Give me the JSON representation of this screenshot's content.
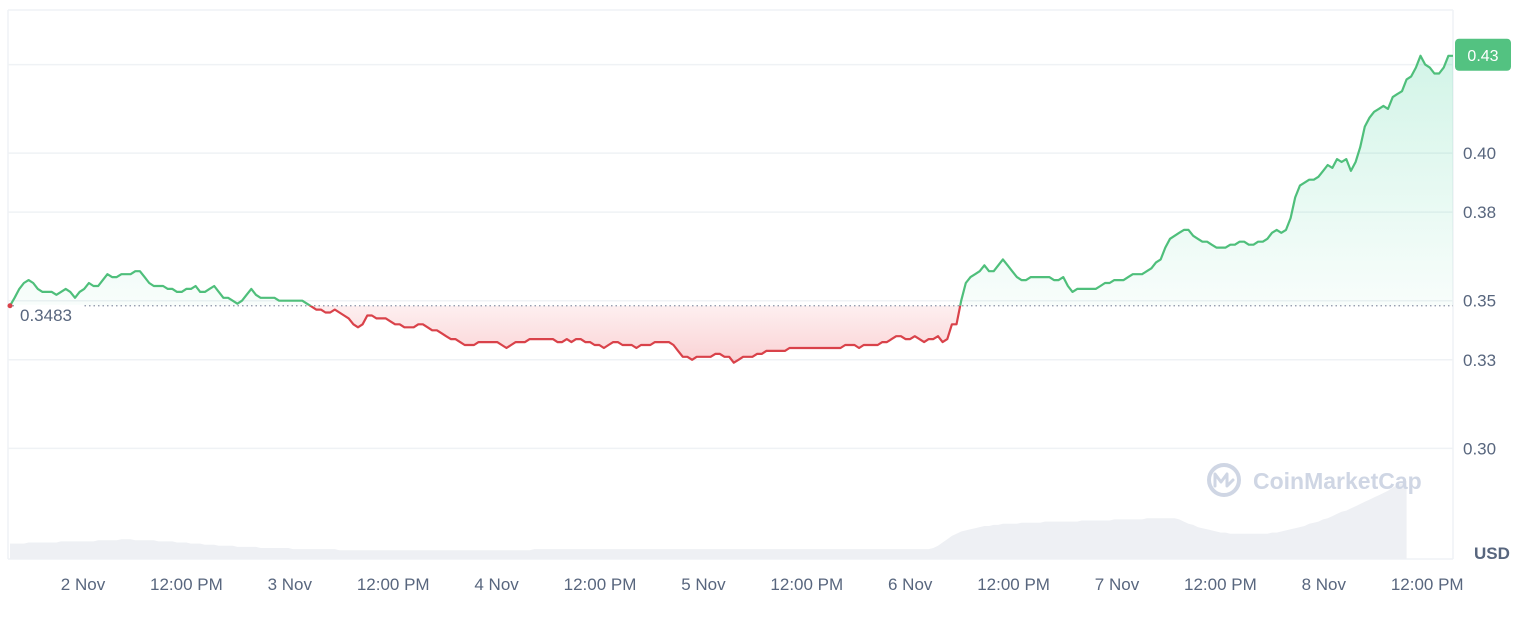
{
  "chart_data": {
    "type": "area",
    "reference_value": 0.3483,
    "reference_label": "0.3483",
    "last_value_label": "0.43",
    "currency_label": "USD",
    "watermark": "CoinMarketCap",
    "ylim": [
      0.2625,
      0.4485
    ],
    "y_ticks": [
      {
        "value": 0.3,
        "label": "0.30"
      },
      {
        "value": 0.33,
        "label": "0.33"
      },
      {
        "value": 0.35,
        "label": "0.35"
      },
      {
        "value": 0.38,
        "label": "0.38"
      },
      {
        "value": 0.4,
        "label": "0.40"
      },
      {
        "value": 0.43,
        "label": "0.43"
      }
    ],
    "x_ticks": [
      "2 Nov",
      "12:00 PM",
      "3 Nov",
      "12:00 PM",
      "4 Nov",
      "12:00 PM",
      "5 Nov",
      "12:00 PM",
      "6 Nov",
      "12:00 PM",
      "7 Nov",
      "12:00 PM",
      "8 Nov",
      "12:00 PM"
    ],
    "x_start": "2 Nov 00:00",
    "x_step_hours": 1,
    "colors": {
      "up": "#4fbf7b",
      "down": "#d9424a",
      "up_fill": "#16c784",
      "down_fill": "#ea3943",
      "label_bg": "#53c281",
      "grid": "#eff2f5",
      "volume": "#eef0f4"
    },
    "series": [
      {
        "values": [
          0.3483,
          0.351,
          0.354,
          0.356,
          0.357,
          0.356,
          0.354,
          0.353,
          0.353,
          0.353,
          0.352,
          0.353,
          0.354,
          0.353,
          0.351,
          0.353,
          0.354,
          0.356,
          0.355,
          0.355,
          0.357,
          0.359,
          0.358,
          0.358,
          0.359,
          0.359,
          0.359,
          0.36,
          0.36,
          0.358,
          0.356,
          0.355,
          0.355,
          0.355,
          0.354,
          0.354,
          0.353,
          0.353,
          0.354,
          0.354,
          0.355,
          0.353,
          0.353,
          0.354,
          0.355,
          0.353,
          0.351,
          0.351,
          0.35,
          0.349,
          0.35,
          0.352,
          0.354,
          0.352,
          0.351,
          0.351,
          0.351,
          0.351,
          0.35,
          0.35,
          0.35,
          0.35,
          0.35,
          0.35,
          0.349,
          0.348,
          0.347,
          0.347,
          0.346,
          0.346,
          0.347,
          0.346,
          0.345,
          0.344,
          0.342,
          0.341,
          0.342,
          0.345,
          0.345,
          0.344,
          0.344,
          0.344,
          0.343,
          0.342,
          0.342,
          0.341,
          0.341,
          0.341,
          0.342,
          0.342,
          0.341,
          0.34,
          0.34,
          0.339,
          0.338,
          0.337,
          0.337,
          0.336,
          0.335,
          0.335,
          0.335,
          0.336,
          0.336,
          0.336,
          0.336,
          0.336,
          0.335,
          0.334,
          0.335,
          0.336,
          0.336,
          0.336,
          0.337,
          0.337,
          0.337,
          0.337,
          0.337,
          0.337,
          0.336,
          0.336,
          0.337,
          0.336,
          0.337,
          0.337,
          0.336,
          0.336,
          0.335,
          0.335,
          0.334,
          0.335,
          0.336,
          0.336,
          0.335,
          0.335,
          0.335,
          0.334,
          0.335,
          0.335,
          0.335,
          0.336,
          0.336,
          0.336,
          0.336,
          0.335,
          0.333,
          0.331,
          0.331,
          0.33,
          0.331,
          0.331,
          0.331,
          0.331,
          0.332,
          0.332,
          0.331,
          0.331,
          0.329,
          0.33,
          0.331,
          0.331,
          0.331,
          0.332,
          0.332,
          0.333,
          0.333,
          0.333,
          0.333,
          0.333,
          0.334,
          0.334,
          0.334,
          0.334,
          0.334,
          0.334,
          0.334,
          0.334,
          0.334,
          0.334,
          0.334,
          0.334,
          0.335,
          0.335,
          0.335,
          0.334,
          0.335,
          0.335,
          0.335,
          0.335,
          0.336,
          0.336,
          0.337,
          0.338,
          0.338,
          0.337,
          0.337,
          0.338,
          0.337,
          0.336,
          0.337,
          0.337,
          0.338,
          0.336,
          0.337,
          0.342,
          0.342,
          0.35,
          0.356,
          0.358,
          0.359,
          0.36,
          0.362,
          0.36,
          0.36,
          0.362,
          0.364,
          0.362,
          0.36,
          0.358,
          0.357,
          0.357,
          0.358,
          0.358,
          0.358,
          0.358,
          0.358,
          0.357,
          0.357,
          0.358,
          0.355,
          0.353,
          0.354,
          0.354,
          0.354,
          0.354,
          0.354,
          0.355,
          0.356,
          0.356,
          0.357,
          0.357,
          0.357,
          0.358,
          0.359,
          0.359,
          0.359,
          0.36,
          0.361,
          0.363,
          0.364,
          0.368,
          0.371,
          0.372,
          0.373,
          0.374,
          0.374,
          0.372,
          0.371,
          0.37,
          0.37,
          0.369,
          0.368,
          0.368,
          0.368,
          0.369,
          0.369,
          0.37,
          0.37,
          0.369,
          0.369,
          0.37,
          0.37,
          0.371,
          0.373,
          0.374,
          0.373,
          0.374,
          0.378,
          0.385,
          0.389,
          0.39,
          0.391,
          0.391,
          0.392,
          0.394,
          0.396,
          0.395,
          0.398,
          0.397,
          0.398,
          0.394,
          0.397,
          0.402,
          0.409,
          0.412,
          0.414,
          0.415,
          0.416,
          0.415,
          0.419,
          0.42,
          0.421,
          0.425,
          0.426,
          0.429,
          0.433,
          0.43,
          0.429,
          0.427,
          0.427,
          0.429,
          0.433,
          0.433
        ]
      }
    ],
    "volume": [
      0.14,
      0.14,
      0.14,
      0.14,
      0.15,
      0.15,
      0.15,
      0.15,
      0.15,
      0.15,
      0.15,
      0.16,
      0.16,
      0.16,
      0.16,
      0.16,
      0.16,
      0.16,
      0.16,
      0.17,
      0.17,
      0.17,
      0.17,
      0.17,
      0.18,
      0.18,
      0.18,
      0.17,
      0.17,
      0.17,
      0.17,
      0.17,
      0.16,
      0.16,
      0.16,
      0.16,
      0.15,
      0.15,
      0.15,
      0.14,
      0.14,
      0.14,
      0.13,
      0.13,
      0.13,
      0.12,
      0.12,
      0.12,
      0.12,
      0.11,
      0.11,
      0.11,
      0.11,
      0.11,
      0.1,
      0.1,
      0.1,
      0.1,
      0.1,
      0.1,
      0.1,
      0.09,
      0.09,
      0.09,
      0.09,
      0.09,
      0.09,
      0.09,
      0.09,
      0.09,
      0.09,
      0.08,
      0.08,
      0.08,
      0.08,
      0.08,
      0.08,
      0.08,
      0.08,
      0.08,
      0.08,
      0.08,
      0.08,
      0.08,
      0.08,
      0.08,
      0.08,
      0.08,
      0.08,
      0.08,
      0.08,
      0.08,
      0.08,
      0.08,
      0.08,
      0.08,
      0.08,
      0.08,
      0.08,
      0.08,
      0.08,
      0.08,
      0.08,
      0.08,
      0.08,
      0.08,
      0.08,
      0.08,
      0.08,
      0.08,
      0.08,
      0.08,
      0.08,
      0.09,
      0.09,
      0.09,
      0.09,
      0.09,
      0.09,
      0.09,
      0.09,
      0.09,
      0.09,
      0.09,
      0.09,
      0.09,
      0.09,
      0.09,
      0.09,
      0.09,
      0.09,
      0.09,
      0.09,
      0.09,
      0.09,
      0.09,
      0.09,
      0.09,
      0.09,
      0.09,
      0.09,
      0.09,
      0.09,
      0.09,
      0.09,
      0.09,
      0.09,
      0.09,
      0.09,
      0.09,
      0.09,
      0.09,
      0.09,
      0.09,
      0.09,
      0.09,
      0.09,
      0.09,
      0.09,
      0.09,
      0.09,
      0.09,
      0.09,
      0.09,
      0.09,
      0.09,
      0.09,
      0.09,
      0.09,
      0.09,
      0.09,
      0.09,
      0.09,
      0.09,
      0.09,
      0.09,
      0.09,
      0.09,
      0.09,
      0.09,
      0.09,
      0.09,
      0.09,
      0.09,
      0.09,
      0.09,
      0.09,
      0.09,
      0.09,
      0.09,
      0.09,
      0.09,
      0.09,
      0.09,
      0.09,
      0.09,
      0.09,
      0.09,
      0.09,
      0.1,
      0.12,
      0.15,
      0.18,
      0.21,
      0.23,
      0.25,
      0.26,
      0.27,
      0.28,
      0.29,
      0.3,
      0.3,
      0.31,
      0.31,
      0.32,
      0.32,
      0.32,
      0.32,
      0.33,
      0.33,
      0.33,
      0.33,
      0.33,
      0.34,
      0.34,
      0.34,
      0.34,
      0.34,
      0.34,
      0.34,
      0.34,
      0.35,
      0.35,
      0.35,
      0.35,
      0.35,
      0.35,
      0.35,
      0.36,
      0.36,
      0.36,
      0.36,
      0.36,
      0.36,
      0.36,
      0.37,
      0.37,
      0.37,
      0.37,
      0.37,
      0.37,
      0.37,
      0.36,
      0.34,
      0.32,
      0.31,
      0.29,
      0.28,
      0.27,
      0.26,
      0.25,
      0.24,
      0.24,
      0.23,
      0.23,
      0.23,
      0.23,
      0.23,
      0.23,
      0.23,
      0.23,
      0.23,
      0.24,
      0.24,
      0.25,
      0.26,
      0.27,
      0.28,
      0.29,
      0.3,
      0.32,
      0.33,
      0.34,
      0.36,
      0.37,
      0.39,
      0.41,
      0.43,
      0.44,
      0.46,
      0.48,
      0.5,
      0.52,
      0.54,
      0.56,
      0.58,
      0.6,
      0.62,
      0.65,
      0.67,
      0.69,
      0.71
    ]
  }
}
